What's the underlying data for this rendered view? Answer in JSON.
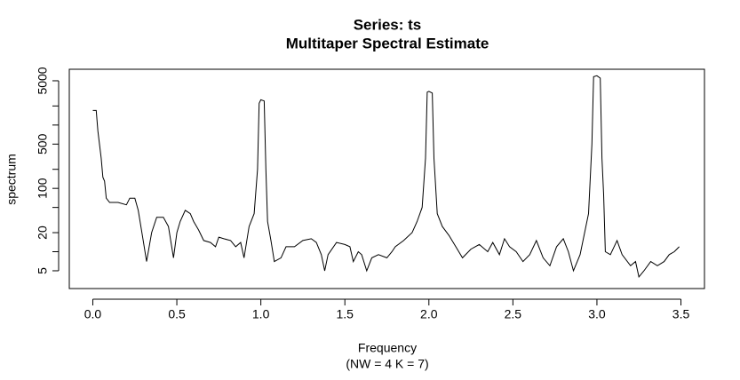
{
  "chart_data": {
    "type": "line",
    "title": "Series: ts",
    "subtitle": "Multitaper Spectral Estimate",
    "x_label": "Frequency",
    "x_sublabel": "(NW = 4 K = 7)",
    "y_label": "spectrum",
    "log_y": true,
    "color": "#000000",
    "xlim": [
      -0.14,
      3.64
    ],
    "ylim": [
      2.62,
      7600
    ],
    "xticks": [
      {
        "value": 0,
        "label": "0.0"
      },
      0.5,
      {
        "value": 1,
        "label": "1.0"
      },
      1.5,
      {
        "value": 2,
        "label": "2.0"
      },
      2.5,
      {
        "value": 3,
        "label": "3.0"
      },
      3.5
    ],
    "yticks": [
      5,
      20,
      100,
      500,
      5000
    ],
    "yminorticks": [
      10,
      50,
      200,
      1000,
      2000
    ],
    "x": [
      0.0,
      0.02,
      0.03,
      0.05,
      0.06,
      0.07,
      0.08,
      0.1,
      0.15,
      0.2,
      0.22,
      0.25,
      0.27,
      0.3,
      0.32,
      0.35,
      0.38,
      0.42,
      0.45,
      0.48,
      0.5,
      0.52,
      0.55,
      0.58,
      0.6,
      0.63,
      0.66,
      0.7,
      0.73,
      0.75,
      0.78,
      0.82,
      0.85,
      0.88,
      0.9,
      0.93,
      0.96,
      0.98,
      0.99,
      1.0,
      1.02,
      1.03,
      1.04,
      1.06,
      1.08,
      1.12,
      1.15,
      1.2,
      1.25,
      1.3,
      1.33,
      1.36,
      1.38,
      1.4,
      1.45,
      1.5,
      1.53,
      1.55,
      1.58,
      1.6,
      1.63,
      1.66,
      1.7,
      1.75,
      1.78,
      1.8,
      1.85,
      1.9,
      1.93,
      1.96,
      1.98,
      1.99,
      2.0,
      2.02,
      2.03,
      2.05,
      2.08,
      2.12,
      2.16,
      2.2,
      2.25,
      2.3,
      2.35,
      2.38,
      2.42,
      2.45,
      2.48,
      2.52,
      2.56,
      2.6,
      2.64,
      2.68,
      2.72,
      2.76,
      2.8,
      2.83,
      2.86,
      2.9,
      2.95,
      2.97,
      2.98,
      3.0,
      3.02,
      3.03,
      3.04,
      3.05,
      3.08,
      3.12,
      3.15,
      3.2,
      3.23,
      3.25,
      3.28,
      3.32,
      3.36,
      3.4,
      3.43,
      3.46,
      3.49
    ],
    "values": [
      1700,
      1700,
      800,
      300,
      150,
      130,
      70,
      60,
      60,
      55,
      70,
      70,
      45,
      15,
      7,
      20,
      35,
      35,
      25,
      8,
      20,
      30,
      45,
      40,
      30,
      22,
      15,
      14,
      12,
      17,
      16,
      15,
      12,
      14,
      8,
      25,
      40,
      200,
      2200,
      2500,
      2400,
      200,
      30,
      15,
      7,
      8,
      12,
      12,
      15,
      16,
      14,
      9,
      5,
      9,
      14,
      13,
      12,
      7,
      10,
      9,
      5,
      8,
      9,
      8,
      10,
      12,
      15,
      20,
      30,
      50,
      300,
      3300,
      3400,
      3200,
      300,
      40,
      25,
      18,
      12,
      8,
      11,
      13,
      10,
      14,
      9,
      16,
      12,
      10,
      7,
      9,
      15,
      8,
      6,
      12,
      16,
      10,
      5,
      9,
      40,
      500,
      5800,
      6000,
      5500,
      300,
      80,
      10,
      9,
      15,
      9,
      6,
      7,
      4,
      5,
      7,
      6,
      7,
      9,
      10,
      12
    ]
  }
}
